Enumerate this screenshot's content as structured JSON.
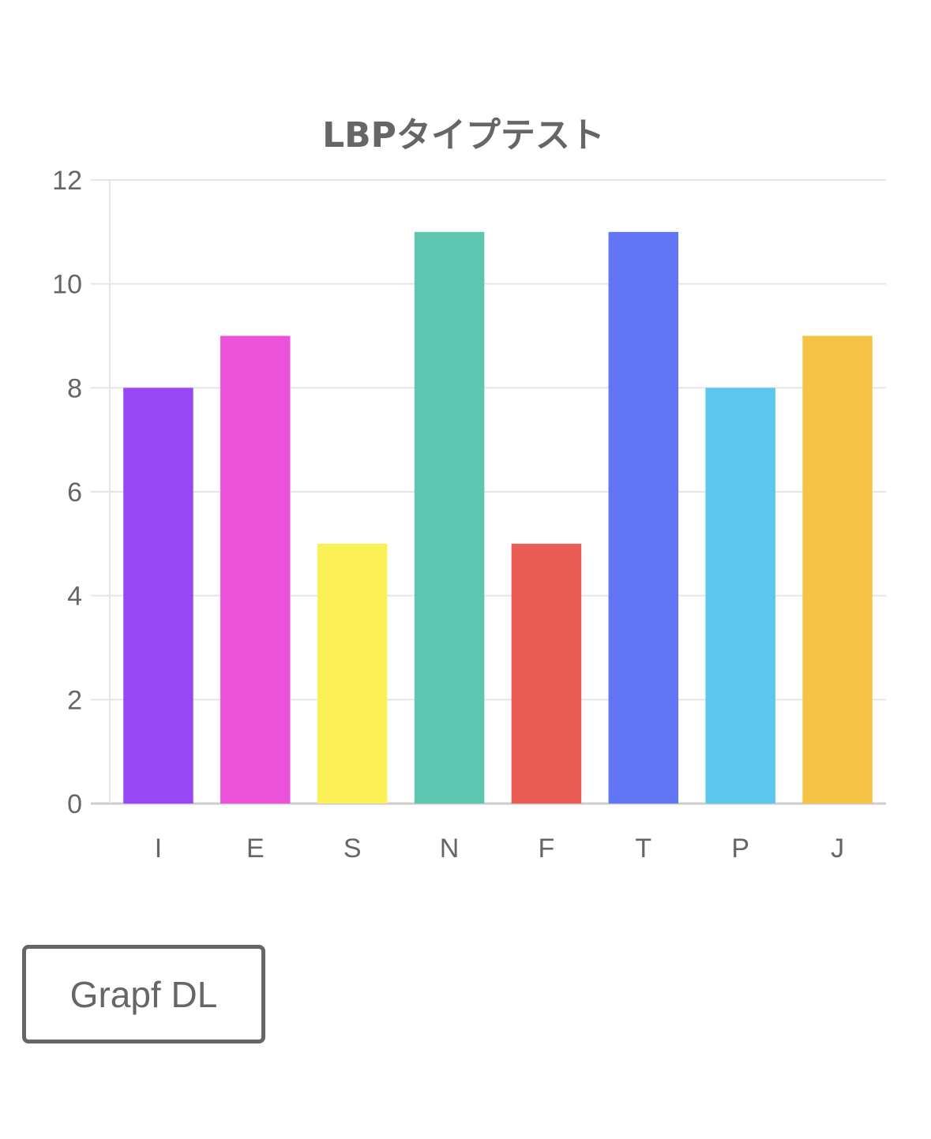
{
  "chart_data": {
    "type": "bar",
    "title": "LBPタイプテスト",
    "categories": [
      "I",
      "E",
      "S",
      "N",
      "F",
      "T",
      "P",
      "J"
    ],
    "values": [
      8,
      9,
      5,
      11,
      5,
      11,
      8,
      9
    ],
    "colors": [
      "#9747f5",
      "#ec52d9",
      "#fbf157",
      "#5cc6b0",
      "#ea5d55",
      "#6276f5",
      "#5dc6ec",
      "#f5c445"
    ],
    "ylim": [
      0,
      12
    ],
    "yticks": [
      0,
      2,
      4,
      6,
      8,
      10,
      12
    ],
    "grid": true,
    "legend": "none",
    "xlabel": "",
    "ylabel": ""
  },
  "colors": {
    "text": "#666666",
    "grid": "#e5e5e5",
    "axis": "#cccccc"
  },
  "download_button": {
    "label": "Grapf DL"
  }
}
